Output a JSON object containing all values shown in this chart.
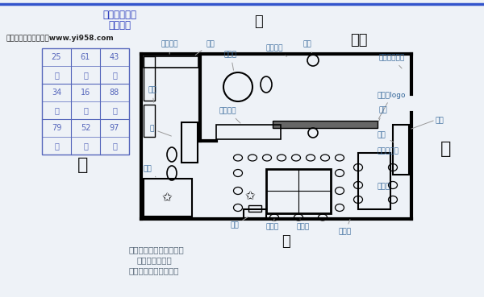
{
  "title1": "八运西山朝向",
  "title2": "按星下卦",
  "watermark": "易迹轩算命网排盘系统www.yi958.com",
  "grid_data": [
    [
      "25",
      "61",
      "43"
    ],
    [
      "七",
      "三",
      "五"
    ],
    [
      "34",
      "16",
      "88"
    ],
    [
      "六",
      "八",
      "一"
    ],
    [
      "79",
      "52",
      "97"
    ],
    [
      "二",
      "四",
      "九"
    ]
  ],
  "bg_color": "#eef2f7",
  "top_line_color": "#3355cc",
  "title_color": "#2233bb",
  "watermark_color": "#222222",
  "grid_color": "#5566bb",
  "wall_color": "#000000",
  "label_color": "#336699",
  "dir_color": "#111111",
  "note_color": "#556677",
  "arrow_color": "#999999"
}
